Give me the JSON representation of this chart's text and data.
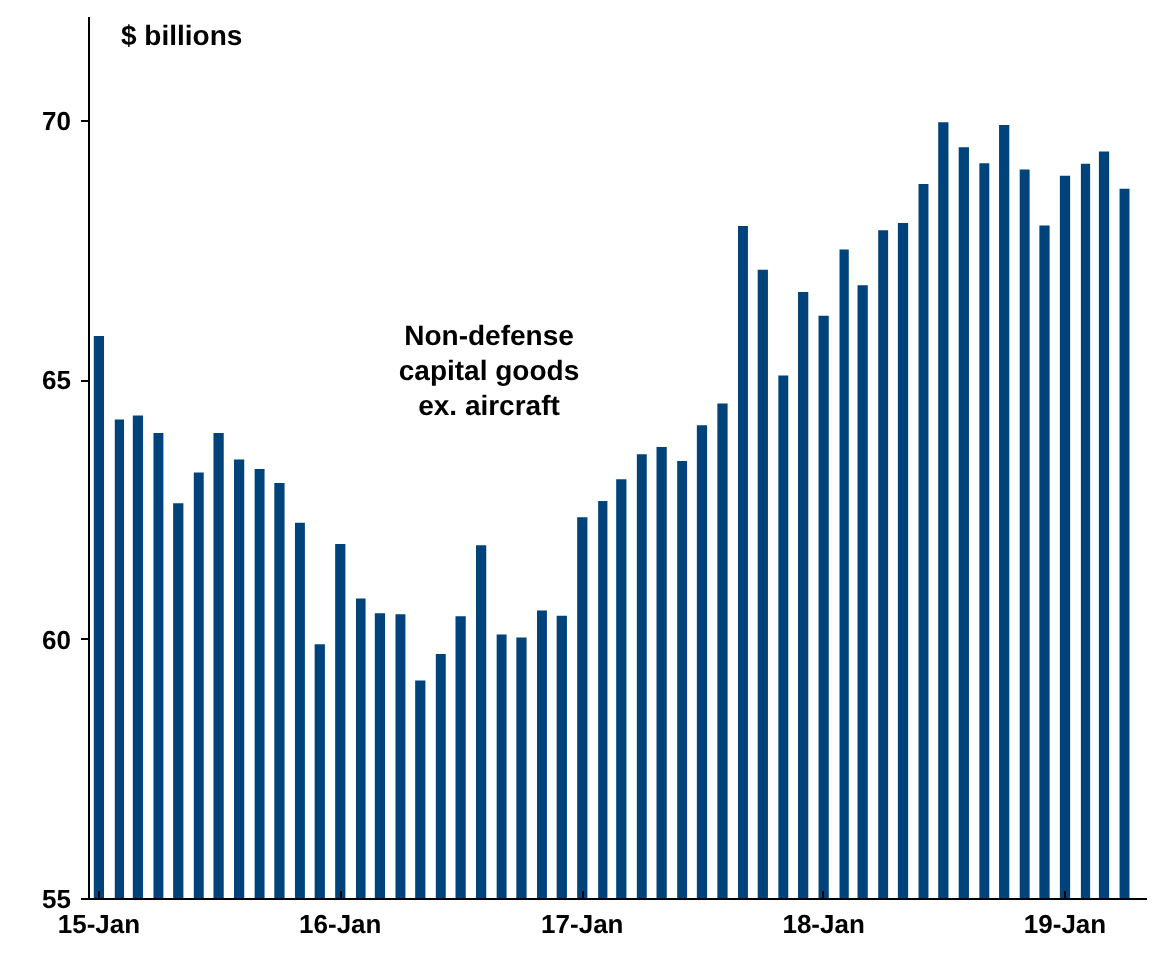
{
  "chart_data": {
    "type": "bar",
    "title": "$ billions",
    "annotations": [
      "Non-defense\ncapital goods\nex. aircraft"
    ],
    "x": [
      "2015-01",
      "2015-02",
      "2015-03",
      "2015-04",
      "2015-05",
      "2015-06",
      "2015-07",
      "2015-08",
      "2015-09",
      "2015-10",
      "2015-11",
      "2015-12",
      "2016-01",
      "2016-02",
      "2016-03",
      "2016-04",
      "2016-05",
      "2016-06",
      "2016-07",
      "2016-08",
      "2016-09",
      "2016-10",
      "2016-11",
      "2016-12",
      "2017-01",
      "2017-02",
      "2017-03",
      "2017-04",
      "2017-05",
      "2017-06",
      "2017-07",
      "2017-08",
      "2017-09",
      "2017-10",
      "2017-11",
      "2017-12",
      "2018-01",
      "2018-02",
      "2018-03",
      "2018-04",
      "2018-05",
      "2018-06",
      "2018-07",
      "2018-08",
      "2018-09",
      "2018-10",
      "2018-11",
      "2018-12",
      "2019-01",
      "2019-02",
      "2019-03",
      "2019-04"
    ],
    "values": [
      65.85,
      64.24,
      64.32,
      63.98,
      62.63,
      63.22,
      63.98,
      63.47,
      63.29,
      63.02,
      62.25,
      59.91,
      61.84,
      60.79,
      60.51,
      60.49,
      59.21,
      59.72,
      60.45,
      61.82,
      60.1,
      60.04,
      60.56,
      60.46,
      62.36,
      62.67,
      63.09,
      63.57,
      63.71,
      63.44,
      64.13,
      64.55,
      67.97,
      67.13,
      65.09,
      66.7,
      66.24,
      67.52,
      66.83,
      67.89,
      68.03,
      68.78,
      69.97,
      69.49,
      69.18,
      69.92,
      69.06,
      67.98,
      68.94,
      69.17,
      69.41,
      68.69
    ],
    "color": "#00427a",
    "xlim": [
      "2014-12-17",
      "2019-05-05"
    ],
    "xticks": [
      {
        "value": "2015-01-01",
        "label": "15-Jan"
      },
      {
        "value": "2016-01-01",
        "label": "16-Jan"
      },
      {
        "value": "2017-01-01",
        "label": "17-Jan"
      },
      {
        "value": "2018-01-01",
        "label": "18-Jan"
      },
      {
        "value": "2019-01-01",
        "label": "19-Jan"
      }
    ],
    "ylim": [
      55,
      72
    ],
    "yticks": [
      55,
      60,
      65,
      70
    ],
    "grid": false
  }
}
